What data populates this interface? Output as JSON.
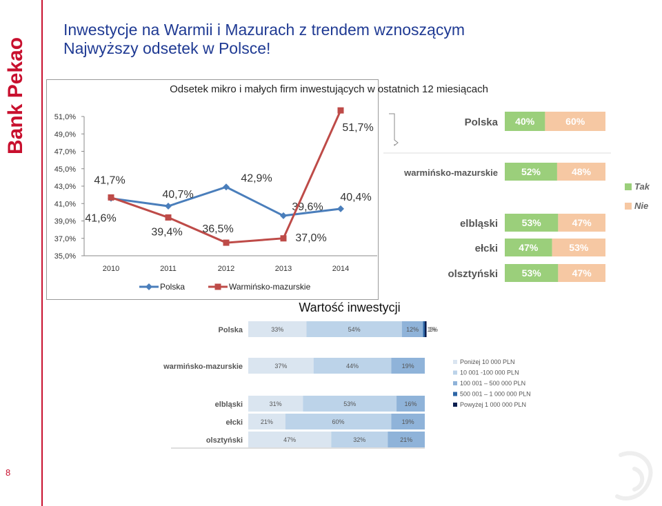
{
  "brand": {
    "name": "Bank Pekao",
    "color": "#c8102e"
  },
  "page_number": "8",
  "title_line1": "Inwestycje na Warmii i Mazurach z trendem wznoszącym",
  "title_line2": "Najwyższy odsetek w Polsce!",
  "chart_data": [
    {
      "type": "line",
      "title": "Odsetek mikro i małych firm inwestujących w ostatnich 12 miesiącach",
      "x": [
        "2010",
        "2011",
        "2012",
        "2013",
        "2014"
      ],
      "ylim": [
        35,
        51
      ],
      "yticks": [
        "35,0%",
        "37,0%",
        "39,0%",
        "41,0%",
        "43,0%",
        "45,0%",
        "47,0%",
        "49,0%",
        "51,0%"
      ],
      "grid": false,
      "legend_position": "bottom",
      "series": [
        {
          "name": "Polska",
          "color": "#4a7ebb",
          "marker": "diamond",
          "values": [
            41.6,
            40.7,
            42.9,
            39.6,
            40.4
          ],
          "labels": [
            "41,6%",
            "40,7%",
            "42,9%",
            "39,6%",
            "40,4%"
          ]
        },
        {
          "name": "Warmińsko-mazurskie",
          "color": "#be4b48",
          "marker": "square",
          "values": [
            41.7,
            39.4,
            36.5,
            37.0,
            51.7
          ],
          "labels": [
            "41,7%",
            "39,4%",
            "36,5%",
            "37,0%",
            "51,7%"
          ]
        }
      ]
    },
    {
      "type": "bar",
      "orientation": "horizontal",
      "stacked": true,
      "categories": [
        "Polska",
        "warmińsko-mazurskie",
        "elbląski",
        "ełcki",
        "olsztyński"
      ],
      "series": [
        {
          "name": "Tak",
          "color": "#9bcf7b",
          "values": [
            40,
            52,
            53,
            47,
            53
          ],
          "labels": [
            "40%",
            "52%",
            "53%",
            "47%",
            "53%"
          ]
        },
        {
          "name": "Nie",
          "color": "#f6c8a3",
          "values": [
            60,
            48,
            47,
            53,
            47
          ],
          "labels": [
            "60%",
            "48%",
            "47%",
            "53%",
            "47%"
          ]
        }
      ],
      "legend_position": "right"
    },
    {
      "type": "bar",
      "orientation": "horizontal",
      "stacked": true,
      "title": "Wartość inwestycji",
      "categories": [
        "Polska",
        "warmińsko-mazurskie",
        "elbląski",
        "ełcki",
        "olsztyński"
      ],
      "series": [
        {
          "name": "Poniżej 10 000 PLN",
          "color": "#dae5f0",
          "values": [
            33,
            37,
            31,
            21,
            47
          ],
          "labels": [
            "33%",
            "37%",
            "31%",
            "21%",
            "47%"
          ]
        },
        {
          "name": "10 001 -100 000 PLN",
          "color": "#bcd3e9",
          "values": [
            54,
            44,
            53,
            60,
            32
          ],
          "labels": [
            "54%",
            "44%",
            "53%",
            "60%",
            "32%"
          ]
        },
        {
          "name": "100 001 – 500 000 PLN",
          "color": "#8fb3d9",
          "values": [
            12,
            19,
            16,
            19,
            21
          ],
          "labels": [
            "12%",
            "19%",
            "16%",
            "19%",
            "21%"
          ]
        },
        {
          "name": "500 001 – 1 000 000 PLN",
          "color": "#2e66a6",
          "values": [
            1,
            0,
            0,
            0,
            0
          ],
          "labels": [
            "1%",
            "",
            "",
            "",
            ""
          ]
        },
        {
          "name": "Powyżej 1 000 000 PLN",
          "color": "#0b1e4f",
          "values": [
            1,
            0,
            0,
            0,
            0
          ],
          "labels": [
            "1%",
            "",
            "",
            "",
            ""
          ]
        }
      ],
      "legend_position": "right"
    }
  ]
}
